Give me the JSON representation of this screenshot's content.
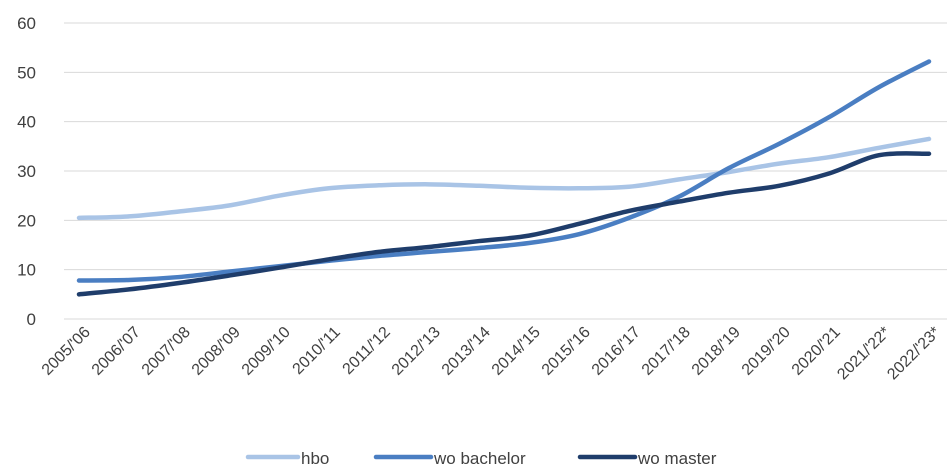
{
  "chart_data": {
    "type": "line",
    "title": "",
    "xlabel": "",
    "ylabel": "",
    "ylim": [
      0,
      60
    ],
    "yticks": [
      0,
      10,
      20,
      30,
      40,
      50,
      60
    ],
    "grid": "horizontal",
    "legend_position": "bottom",
    "categories": [
      "2005/'06",
      "2006/'07",
      "2007/'08",
      "2008/'09",
      "2009/'10",
      "2010/'11",
      "2011/'12",
      "2012/'13",
      "2013/'14",
      "2014/'15",
      "2015/'16",
      "2016/'17",
      "2017/'18",
      "2018/'19",
      "2019/'20",
      "2020/'21",
      "2021/'22*",
      "2022/'23*"
    ],
    "series": [
      {
        "name": "hbo",
        "color": "#a9c4e6",
        "values": [
          20.5,
          20.8,
          21.8,
          23.0,
          25.0,
          26.5,
          27.1,
          27.3,
          27.0,
          26.6,
          26.5,
          26.8,
          28.3,
          29.8,
          31.5,
          32.8,
          34.7,
          36.5
        ]
      },
      {
        "name": "wo bachelor",
        "color": "#4a7ec2",
        "values": [
          7.8,
          7.9,
          8.5,
          9.6,
          10.7,
          11.8,
          12.8,
          13.6,
          14.4,
          15.4,
          17.2,
          20.5,
          24.8,
          30.6,
          35.5,
          40.9,
          47.0,
          52.2
        ]
      },
      {
        "name": "wo master",
        "color": "#1f3d6b",
        "values": [
          5.0,
          6.0,
          7.3,
          8.8,
          10.4,
          12.1,
          13.6,
          14.6,
          15.8,
          16.9,
          19.3,
          21.9,
          23.8,
          25.6,
          27.0,
          29.5,
          33.2,
          33.5
        ]
      }
    ]
  }
}
